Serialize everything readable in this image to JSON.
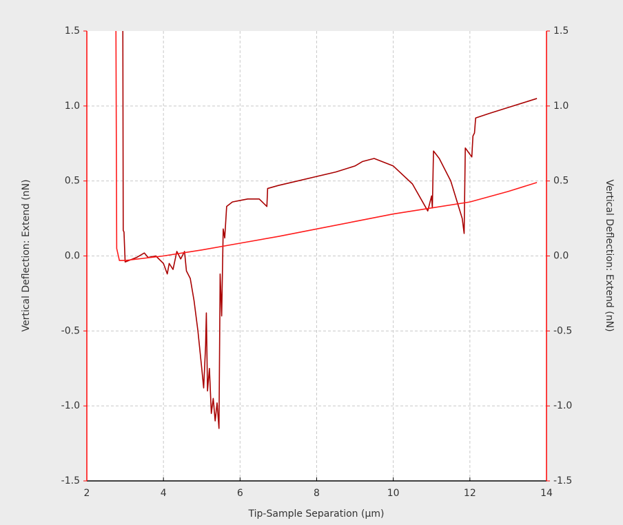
{
  "chart_data": {
    "type": "line",
    "xlabel": "Tip-Sample Separation (µm)",
    "ylabel": "Vertical Deflection: Extend (nN)",
    "y2label": "Vertical Deflection: Extend (nN)",
    "xlim": [
      2,
      14
    ],
    "xticks": [
      2,
      4,
      6,
      8,
      10,
      12,
      14
    ],
    "ylim": [
      -1.5,
      1.5
    ],
    "yticks": [
      -1.5,
      {
        "value": -1,
        "label": "-1.0"
      },
      -0.5,
      {
        "value": 0,
        "label": "0.0"
      },
      0.5,
      {
        "value": 1,
        "label": "1.0"
      },
      1.5
    ],
    "y2lim": [
      -1.5,
      1.5
    ],
    "y2ticks": [
      -1.5,
      {
        "value": -1,
        "label": "-1.0"
      },
      -0.5,
      {
        "value": 0,
        "label": "0.0"
      },
      0.5,
      {
        "value": 1,
        "label": "1.0"
      },
      1.5
    ],
    "grid": true,
    "axis_color": "#ff0000",
    "series": [
      {
        "color": "#a80000",
        "x": [
          2.94,
          2.95,
          2.97,
          3.0,
          3.3,
          3.5,
          3.6,
          3.8,
          4.0,
          4.1,
          4.15,
          4.25,
          4.35,
          4.45,
          4.55,
          4.6,
          4.7,
          4.8,
          4.9,
          5.0,
          5.05,
          5.1,
          5.12,
          5.15,
          5.2,
          5.25,
          5.3,
          5.35,
          5.4,
          5.45,
          5.48,
          5.52,
          5.56,
          5.6,
          5.65,
          5.8,
          6.0,
          6.2,
          6.5,
          6.7,
          6.72,
          7.0,
          7.5,
          8.0,
          8.5,
          9.0,
          9.2,
          9.5,
          10.0,
          10.5,
          10.9,
          11.0,
          11.02,
          11.05,
          11.2,
          11.5,
          11.8,
          11.85,
          11.88,
          12.05,
          12.08,
          12.12,
          12.15,
          12.5,
          13.0,
          13.5,
          13.75
        ],
        "values": [
          1.5,
          0.17,
          0.16,
          -0.04,
          -0.01,
          0.02,
          -0.01,
          0.0,
          -0.05,
          -0.12,
          -0.05,
          -0.09,
          0.03,
          -0.02,
          0.03,
          -0.1,
          -0.15,
          -0.3,
          -0.5,
          -0.75,
          -0.88,
          -0.6,
          -0.38,
          -0.9,
          -0.75,
          -1.05,
          -0.95,
          -1.1,
          -0.98,
          -1.15,
          -0.12,
          -0.4,
          0.18,
          0.12,
          0.33,
          0.36,
          0.37,
          0.38,
          0.38,
          0.33,
          0.45,
          0.47,
          0.5,
          0.53,
          0.56,
          0.6,
          0.63,
          0.65,
          0.6,
          0.48,
          0.3,
          0.4,
          0.32,
          0.7,
          0.65,
          0.5,
          0.25,
          0.15,
          0.72,
          0.66,
          0.8,
          0.82,
          0.92,
          0.95,
          0.99,
          1.03,
          1.05
        ]
      },
      {
        "color": "#ff1a1a",
        "x": [
          2.76,
          2.78,
          2.85,
          3.0,
          4.0,
          5.0,
          6.0,
          7.0,
          8.0,
          9.0,
          10.0,
          11.0,
          12.0,
          13.0,
          13.75
        ],
        "values": [
          1.5,
          0.05,
          -0.03,
          -0.03,
          0.0,
          0.04,
          0.085,
          0.13,
          0.18,
          0.23,
          0.28,
          0.32,
          0.36,
          0.43,
          0.49
        ]
      }
    ]
  }
}
